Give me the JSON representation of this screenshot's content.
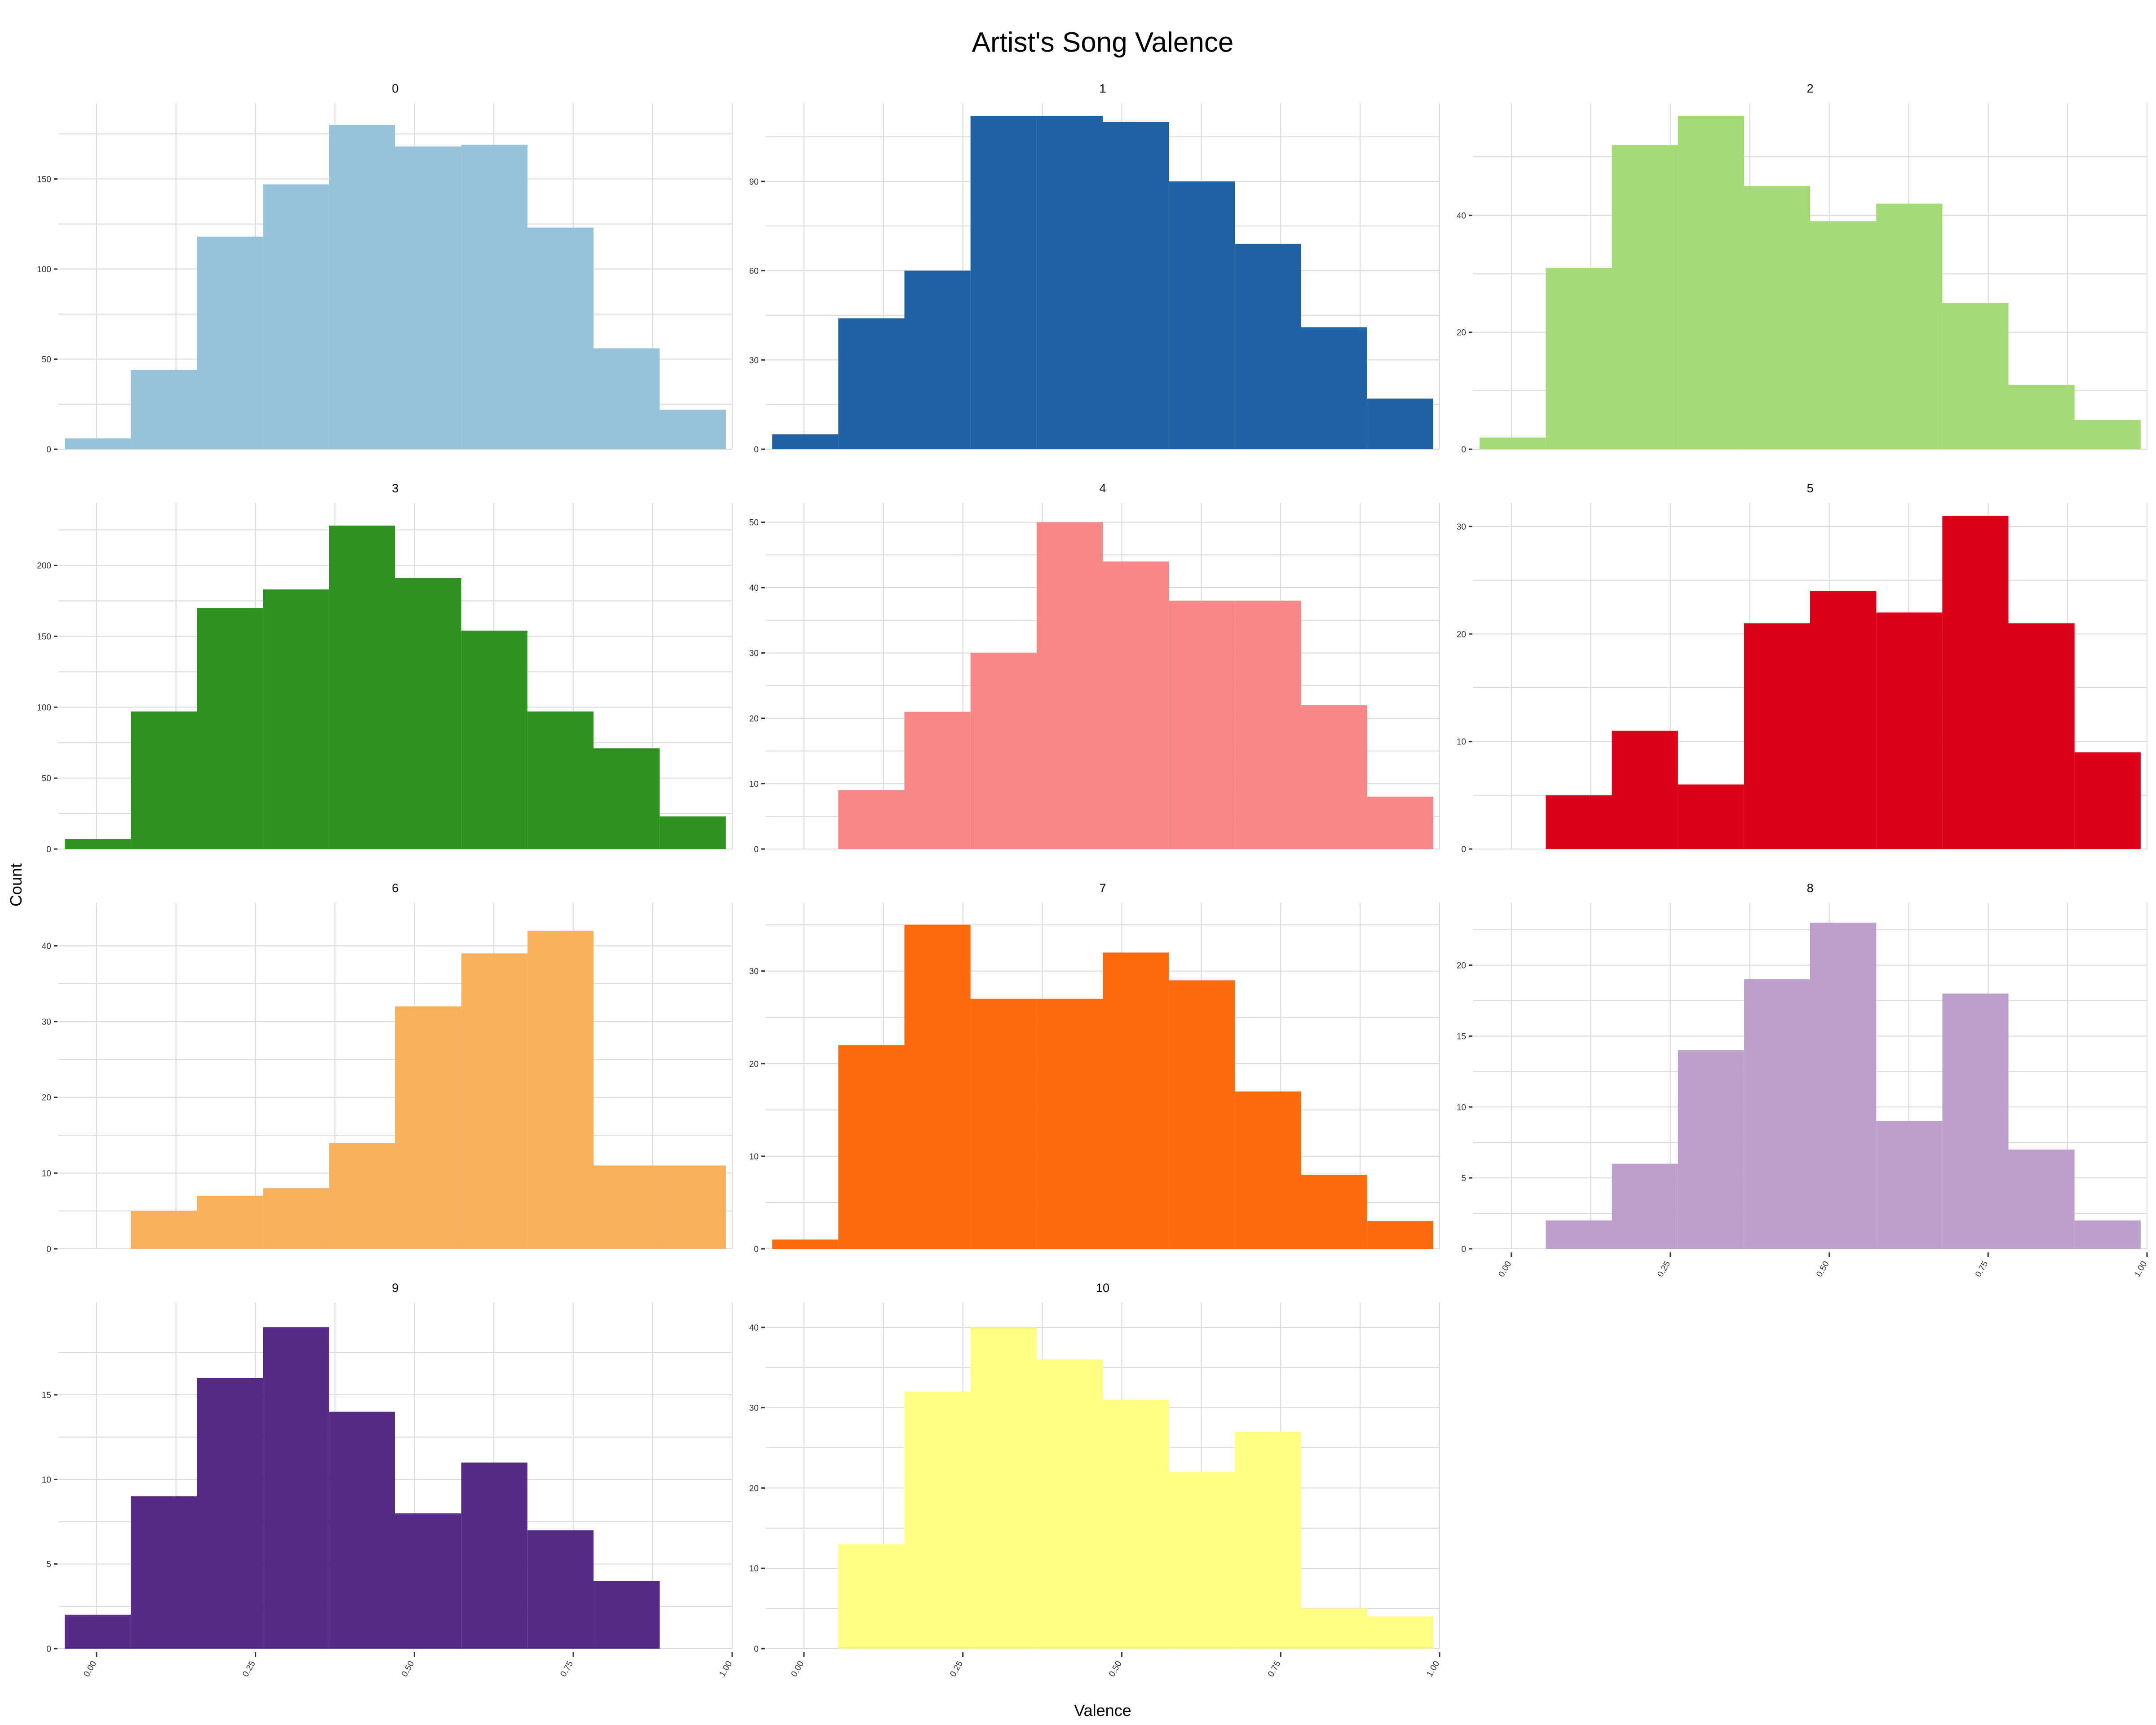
{
  "chart_data": {
    "type": "bar",
    "title": "Artist's Song Valence",
    "xlabel": "Valence",
    "ylabel": "Count",
    "xlim": [
      -0.06,
      1.0
    ],
    "x_ticks": [
      "0.00",
      "0.25",
      "0.50",
      "0.75",
      "1.00"
    ],
    "bin_edges": [
      -0.05,
      0.054,
      0.158,
      0.262,
      0.366,
      0.47,
      0.574,
      0.678,
      0.782,
      0.886,
      0.99
    ],
    "grid": true,
    "legend": "none",
    "facets": [
      {
        "label": "0",
        "color": "#96C2DC",
        "ylim": [
          0,
          185
        ],
        "y_ticks": [
          0,
          50,
          100,
          150
        ],
        "values": [
          6,
          44,
          118,
          147,
          180,
          168,
          169,
          123,
          56,
          22
        ]
      },
      {
        "label": "1",
        "color": "#1F63A5",
        "ylim": [
          0,
          112
        ],
        "y_ticks": [
          0,
          30,
          60,
          90
        ],
        "values": [
          5,
          44,
          60,
          112,
          112,
          110,
          90,
          69,
          41,
          17
        ]
      },
      {
        "label": "2",
        "color": "#A4DB77",
        "ylim": [
          0,
          57
        ],
        "y_ticks": [
          0,
          20,
          40
        ],
        "values": [
          2,
          31,
          52,
          57,
          45,
          39,
          42,
          25,
          11,
          5
        ]
      },
      {
        "label": "3",
        "color": "#2E9321",
        "ylim": [
          0,
          235
        ],
        "y_ticks": [
          0,
          50,
          100,
          150,
          200
        ],
        "values": [
          7,
          97,
          170,
          183,
          228,
          191,
          154,
          97,
          71,
          23
        ]
      },
      {
        "label": "4",
        "color": "#F78787",
        "ylim": [
          0,
          51
        ],
        "y_ticks": [
          0,
          10,
          20,
          30,
          40,
          50
        ],
        "values": [
          0,
          9,
          21,
          30,
          50,
          44,
          38,
          38,
          22,
          8
        ]
      },
      {
        "label": "5",
        "color": "#DA0019",
        "ylim": [
          0,
          31
        ],
        "y_ticks": [
          0,
          10,
          20,
          30
        ],
        "values": [
          0,
          5,
          11,
          6,
          21,
          24,
          22,
          31,
          21,
          9
        ]
      },
      {
        "label": "6",
        "color": "#F9B05C",
        "ylim": [
          0,
          44
        ],
        "y_ticks": [
          0,
          10,
          20,
          30,
          40
        ],
        "values": [
          0,
          5,
          7,
          8,
          14,
          32,
          39,
          42,
          11,
          11
        ]
      },
      {
        "label": "7",
        "color": "#FC6A0D",
        "ylim": [
          0,
          36
        ],
        "y_ticks": [
          0,
          10,
          20,
          30
        ],
        "values": [
          1,
          22,
          35,
          27,
          27,
          32,
          29,
          17,
          8,
          3
        ]
      },
      {
        "label": "8",
        "color": "#BDA0CB",
        "ylim": [
          0,
          23.5
        ],
        "y_ticks": [
          0,
          5,
          10,
          15,
          20
        ],
        "values": [
          0,
          2,
          6,
          14,
          19,
          23,
          9,
          18,
          7,
          2
        ]
      },
      {
        "label": "9",
        "color": "#572A88",
        "ylim": [
          0,
          19.7
        ],
        "y_ticks": [
          0,
          5,
          10,
          15
        ],
        "values": [
          2,
          9,
          16,
          19,
          14,
          8,
          11,
          7,
          4,
          0
        ]
      },
      {
        "label": "10",
        "color": "#FFFF84",
        "ylim": [
          0,
          41.5
        ],
        "y_ticks": [
          0,
          10,
          20,
          30,
          40
        ],
        "values": [
          0,
          13,
          32,
          40,
          36,
          31,
          22,
          27,
          5,
          4
        ]
      }
    ]
  }
}
